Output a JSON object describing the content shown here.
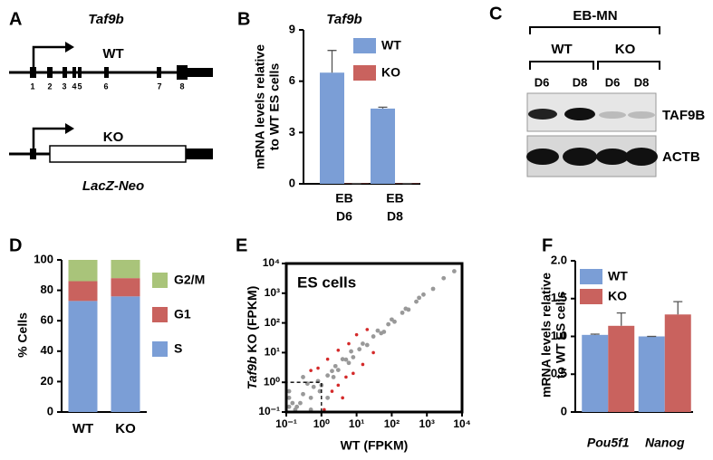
{
  "panels": [
    "A",
    "B",
    "C",
    "D",
    "E",
    "F"
  ],
  "gene_diagram": {
    "title": "Taf9b",
    "wt_label": "WT",
    "exons": [
      "1",
      "2",
      "3",
      "4",
      "5",
      "6",
      "7",
      "8"
    ],
    "ko_label": "KO",
    "cassette": "LacZ-Neo"
  },
  "western": {
    "header": "EB-MN",
    "groups": [
      "WT",
      "KO"
    ],
    "lanes": [
      "D6",
      "D8",
      "D6",
      "D8"
    ],
    "proteins": [
      "TAF9B",
      "ACTB"
    ]
  },
  "chart_data": [
    {
      "type": "bar",
      "title": "Taf9b",
      "ylabel": [
        "mRNA levels relative",
        "to WT ES cells"
      ],
      "categories": [
        [
          "EB",
          "D6"
        ],
        [
          "EB",
          "D8"
        ]
      ],
      "series": [
        {
          "name": "WT",
          "color": "#7b9ed6",
          "values": [
            6.5,
            4.4
          ],
          "errors": [
            1.3,
            0.08
          ]
        },
        {
          "name": "KO",
          "color": "#c9625e",
          "values": [
            0.02,
            0.02
          ],
          "errors": [
            0,
            0
          ]
        }
      ],
      "ylim": [
        0,
        9
      ],
      "yticks": [
        0,
        3,
        6,
        9
      ],
      "legend": "top-right"
    },
    {
      "type": "stacked-bar",
      "ylabel": "% Cells",
      "categories": [
        "WT",
        "KO"
      ],
      "series": [
        {
          "name": "S",
          "color": "#7b9ed6",
          "values": [
            73,
            76
          ]
        },
        {
          "name": "G1",
          "color": "#c9625e",
          "values": [
            13,
            12
          ]
        },
        {
          "name": "G2/M",
          "color": "#a9c47a",
          "values": [
            14,
            12
          ]
        }
      ],
      "ylim": [
        0,
        100
      ],
      "yticks": [
        0,
        20,
        40,
        60,
        80,
        100
      ],
      "legend": "right"
    },
    {
      "type": "scatter",
      "title": "ES cells",
      "xlabel": "WT (FPKM)",
      "ylabel": [
        "Taf9b",
        " KO (FPKM)"
      ],
      "log": true,
      "xlim": [
        0.1,
        10000
      ],
      "ylim": [
        0.1,
        10000
      ],
      "xticks": [
        {
          "value": 0.1,
          "label": "10⁻¹"
        },
        {
          "value": 1,
          "label": "10⁰"
        },
        {
          "value": 10,
          "label": "10¹"
        },
        {
          "value": 100,
          "label": "10²"
        },
        {
          "value": 1000,
          "label": "10³"
        },
        {
          "value": 10000,
          "label": "10⁴"
        }
      ],
      "yticks": [
        {
          "value": 0.1,
          "label": "10⁻¹"
        },
        {
          "value": 1,
          "label": "10⁰"
        },
        {
          "value": 10,
          "label": "10¹"
        },
        {
          "value": 100,
          "label": "10²"
        },
        {
          "value": 1000,
          "label": "10³"
        },
        {
          "value": 10000,
          "label": "10⁴"
        }
      ],
      "threshold": 1,
      "series": [
        {
          "name": "all",
          "color": "#999999",
          "x": [
            0.12,
            0.15,
            0.2,
            0.12,
            0.3,
            0.5,
            0.25,
            0.8,
            1,
            0.6,
            1.5,
            2,
            3,
            2.5,
            5,
            8,
            6,
            12,
            20,
            15,
            30,
            50,
            40,
            80,
            120,
            100,
            200,
            300,
            250,
            500,
            800,
            600,
            1500,
            3000,
            6000,
            0.3,
            1.5,
            0.12,
            0.5,
            4,
            0.9,
            7,
            60,
            0.18,
            2.2,
            0.4
          ],
          "y": [
            0.15,
            0.2,
            0.15,
            0.3,
            0.4,
            0.3,
            0.2,
            1.1,
            0.8,
            0.7,
            1.7,
            2.4,
            2.6,
            3.5,
            5.8,
            7,
            4.5,
            13,
            18,
            20,
            35,
            45,
            55,
            90,
            110,
            130,
            220,
            280,
            300,
            520,
            900,
            700,
            1400,
            3200,
            5500,
            1.5,
            0.3,
            0.5,
            0.12,
            6,
            0.5,
            11,
            50,
            0.12,
            1.5,
            0.9
          ]
        },
        {
          "name": "changed",
          "color": "#d42a2a",
          "x": [
            1.2,
            2,
            3,
            5,
            8,
            1.5,
            0.8,
            3,
            6,
            15,
            30,
            20,
            0.5,
            10,
            4
          ],
          "y": [
            0.12,
            0.5,
            0.8,
            1.5,
            2,
            6,
            3,
            12,
            20,
            4,
            10,
            60,
            2.5,
            40,
            0.3
          ]
        }
      ]
    },
    {
      "type": "bar",
      "ylabel": [
        "mRNA levels relative",
        "to WT ES cells"
      ],
      "categories": [
        "Pou5f1",
        "Nanog"
      ],
      "italic_categories": true,
      "series": [
        {
          "name": "WT",
          "color": "#7b9ed6",
          "values": [
            1.02,
            1.0
          ],
          "errors": [
            0.01,
            0
          ]
        },
        {
          "name": "KO",
          "color": "#c9625e",
          "values": [
            1.14,
            1.29
          ],
          "errors": [
            0.17,
            0.17
          ]
        }
      ],
      "ylim": [
        0,
        2.0
      ],
      "yticks": [
        0,
        0.5,
        {
          "value": 1.0,
          "label": "1.0"
        },
        1.5,
        {
          "value": 2.0,
          "label": "2.0"
        }
      ],
      "legend": "top-left"
    }
  ]
}
